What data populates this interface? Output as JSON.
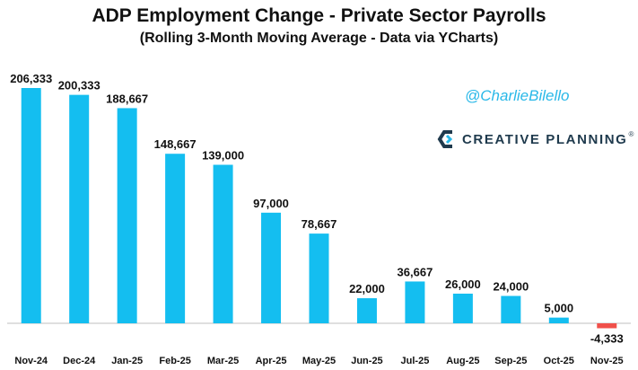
{
  "chart_data": {
    "type": "bar",
    "title": "ADP Employment Change - Private Sector Payrolls",
    "subtitle": "(Rolling 3-Month Moving Average - Data via YCharts)",
    "categories": [
      "Nov-24",
      "Dec-24",
      "Jan-25",
      "Feb-25",
      "Mar-25",
      "Apr-25",
      "May-25",
      "Jun-25",
      "Jul-25",
      "Aug-25",
      "Sep-25",
      "Oct-25",
      "Nov-25"
    ],
    "values": [
      206333,
      200333,
      188667,
      148667,
      139000,
      97000,
      78667,
      22000,
      36667,
      26000,
      24000,
      5000,
      -4333
    ],
    "data_labels": [
      "206,333",
      "200,333",
      "188,667",
      "148,667",
      "139,000",
      "97,000",
      "78,667",
      "22,000",
      "36,667",
      "26,000",
      "24,000",
      "5,000",
      "-4,333"
    ],
    "ylim": [
      -10000,
      215000
    ],
    "grid": false,
    "colors": {
      "positive": "#14bef0",
      "negative": "#f0504a"
    }
  },
  "watermark": {
    "handle": "@CharlieBilello",
    "brand": "CREATIVE PLANNING",
    "trademark": "®"
  }
}
